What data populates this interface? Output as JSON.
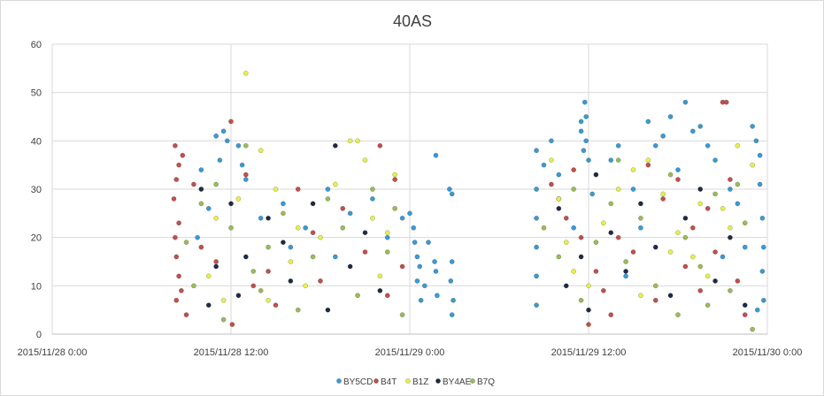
{
  "chart_data": {
    "type": "scatter",
    "title": "40AS",
    "xlabel": "",
    "ylabel": "",
    "x_ticks": [
      "2015/11/28 0:00",
      "2015/11/28 12:00",
      "2015/11/29 0:00",
      "2015/11/29 12:00",
      "2015/11/30 0:00"
    ],
    "xlim": [
      "2015/11/28 0:00",
      "2015/11/30 0:00"
    ],
    "ylim": [
      0,
      60
    ],
    "y_ticks": [
      0,
      10,
      20,
      30,
      40,
      50,
      60
    ],
    "grid": true,
    "legend_position": "bottom",
    "series": [
      {
        "name": "BY5CD",
        "color": "#3a9ad3",
        "points": [
          [
            "2015/11/28 11:00",
            41
          ],
          [
            "2015/11/28 11:30",
            42
          ],
          [
            "2015/11/28 11:45",
            40
          ],
          [
            "2015/11/28 12:30",
            39
          ],
          [
            "2015/11/28 10:00",
            34
          ],
          [
            "2015/11/28 11:15",
            36
          ],
          [
            "2015/11/28 12:45",
            35
          ],
          [
            "2015/11/28 13:00",
            32
          ],
          [
            "2015/11/28 10:30",
            26
          ],
          [
            "2015/11/28 9:45",
            20
          ],
          [
            "2015/11/28 14:00",
            24
          ],
          [
            "2015/11/28 15:30",
            27
          ],
          [
            "2015/11/28 17:00",
            22
          ],
          [
            "2015/11/28 18:30",
            30
          ],
          [
            "2015/11/28 20:00",
            25
          ],
          [
            "2015/11/28 21:30",
            28
          ],
          [
            "2015/11/28 22:30",
            20
          ],
          [
            "2015/11/28 23:30",
            24
          ],
          [
            "2015/11/28 16:00",
            18
          ],
          [
            "2015/11/28 19:00",
            16
          ],
          [
            "2015/11/29 0:00",
            25
          ],
          [
            "2015/11/29 0:15",
            22
          ],
          [
            "2015/11/29 0:20",
            19
          ],
          [
            "2015/11/29 0:30",
            16
          ],
          [
            "2015/11/29 0:40",
            14
          ],
          [
            "2015/11/29 0:30",
            11
          ],
          [
            "2015/11/29 1:00",
            10
          ],
          [
            "2015/11/29 0:45",
            7
          ],
          [
            "2015/11/29 1:15",
            19
          ],
          [
            "2015/11/29 1:45",
            37
          ],
          [
            "2015/11/29 1:40",
            15
          ],
          [
            "2015/11/29 1:45",
            13
          ],
          [
            "2015/11/29 1:50",
            8
          ],
          [
            "2015/11/29 2:40",
            30
          ],
          [
            "2015/11/29 2:50",
            29
          ],
          [
            "2015/11/29 2:50",
            15
          ],
          [
            "2015/11/29 2:45",
            11
          ],
          [
            "2015/11/29 2:55",
            7
          ],
          [
            "2015/11/29 2:50",
            4
          ],
          [
            "2015/11/29 8:30",
            38
          ],
          [
            "2015/11/29 8:30",
            30
          ],
          [
            "2015/11/29 8:30",
            24
          ],
          [
            "2015/11/29 8:30",
            18
          ],
          [
            "2015/11/29 8:30",
            12
          ],
          [
            "2015/11/29 8:30",
            6
          ],
          [
            "2015/11/29 9:00",
            35
          ],
          [
            "2015/11/29 9:30",
            40
          ],
          [
            "2015/11/29 10:00",
            33
          ],
          [
            "2015/11/29 11:00",
            22
          ],
          [
            "2015/11/29 11:30",
            44
          ],
          [
            "2015/11/29 11:30",
            42
          ],
          [
            "2015/11/29 11:45",
            48
          ],
          [
            "2015/11/29 11:50",
            45
          ],
          [
            "2015/11/29 11:50",
            40
          ],
          [
            "2015/11/29 11:40",
            38
          ],
          [
            "2015/11/29 12:00",
            36
          ],
          [
            "2015/11/29 12:15",
            29
          ],
          [
            "2015/11/29 13:30",
            36
          ],
          [
            "2015/11/29 14:00",
            39
          ],
          [
            "2015/11/29 15:00",
            30
          ],
          [
            "2015/11/29 16:00",
            44
          ],
          [
            "2015/11/29 16:30",
            39
          ],
          [
            "2015/11/29 17:00",
            41
          ],
          [
            "2015/11/29 17:30",
            45
          ],
          [
            "2015/11/29 18:00",
            34
          ],
          [
            "2015/11/29 18:30",
            48
          ],
          [
            "2015/11/29 19:00",
            42
          ],
          [
            "2015/11/29 19:30",
            43
          ],
          [
            "2015/11/29 20:00",
            39
          ],
          [
            "2015/11/29 20:30",
            36
          ],
          [
            "2015/11/29 21:30",
            30
          ],
          [
            "2015/11/29 22:00",
            27
          ],
          [
            "2015/11/29 22:30",
            18
          ],
          [
            "2015/11/29 23:00",
            43
          ],
          [
            "2015/11/29 23:15",
            40
          ],
          [
            "2015/11/29 23:30",
            37
          ],
          [
            "2015/11/29 23:30",
            31
          ],
          [
            "2015/11/29 23:40",
            24
          ],
          [
            "2015/11/29 23:45",
            18
          ],
          [
            "2015/11/29 23:40",
            13
          ],
          [
            "2015/11/29 23:45",
            7
          ],
          [
            "2015/11/29 23:20",
            5
          ],
          [
            "2015/11/29 21:00",
            16
          ],
          [
            "2015/11/29 15:30",
            22
          ],
          [
            "2015/11/29 14:30",
            12
          ]
        ]
      },
      {
        "name": "B4T",
        "color": "#c0504d",
        "points": [
          [
            "2015/11/28 8:15",
            39
          ],
          [
            "2015/11/28 8:45",
            37
          ],
          [
            "2015/11/28 8:30",
            35
          ],
          [
            "2015/11/28 8:20",
            32
          ],
          [
            "2015/11/28 8:10",
            28
          ],
          [
            "2015/11/28 8:30",
            23
          ],
          [
            "2015/11/28 8:15",
            20
          ],
          [
            "2015/11/28 8:20",
            16
          ],
          [
            "2015/11/28 8:30",
            12
          ],
          [
            "2015/11/28 8:40",
            9
          ],
          [
            "2015/11/28 8:20",
            7
          ],
          [
            "2015/11/28 9:00",
            4
          ],
          [
            "2015/11/28 9:30",
            31
          ],
          [
            "2015/11/28 10:00",
            18
          ],
          [
            "2015/11/28 12:00",
            44
          ],
          [
            "2015/11/28 12:05",
            2
          ],
          [
            "2015/11/28 13:00",
            33
          ],
          [
            "2015/11/28 14:30",
            13
          ],
          [
            "2015/11/28 16:30",
            30
          ],
          [
            "2015/11/28 18:00",
            11
          ],
          [
            "2015/11/28 19:30",
            26
          ],
          [
            "2015/11/28 21:00",
            17
          ],
          [
            "2015/11/28 22:00",
            39
          ],
          [
            "2015/11/28 23:00",
            32
          ],
          [
            "2015/11/28 22:30",
            8
          ],
          [
            "2015/11/28 23:30",
            14
          ],
          [
            "2015/11/28 17:30",
            21
          ],
          [
            "2015/11/28 15:00",
            6
          ],
          [
            "2015/11/28 11:00",
            15
          ],
          [
            "2015/11/28 13:30",
            10
          ],
          [
            "2015/11/29 9:30",
            31
          ],
          [
            "2015/11/29 10:00",
            28
          ],
          [
            "2015/11/29 10:30",
            24
          ],
          [
            "2015/11/29 11:00",
            34
          ],
          [
            "2015/11/29 11:30",
            20
          ],
          [
            "2015/11/29 12:00",
            2
          ],
          [
            "2015/11/29 12:30",
            13
          ],
          [
            "2015/11/29 13:00",
            9
          ],
          [
            "2015/11/29 14:00",
            20
          ],
          [
            "2015/11/29 15:00",
            17
          ],
          [
            "2015/11/29 16:00",
            35
          ],
          [
            "2015/11/29 17:00",
            28
          ],
          [
            "2015/11/29 18:00",
            32
          ],
          [
            "2015/11/29 19:00",
            22
          ],
          [
            "2015/11/29 20:00",
            26
          ],
          [
            "2015/11/29 21:00",
            48
          ],
          [
            "2015/11/29 21:15",
            48
          ],
          [
            "2015/11/29 21:30",
            32
          ],
          [
            "2015/11/29 22:00",
            11
          ],
          [
            "2015/11/29 22:30",
            4
          ],
          [
            "2015/11/29 13:30",
            4
          ],
          [
            "2015/11/29 16:30",
            7
          ],
          [
            "2015/11/29 18:30",
            14
          ],
          [
            "2015/11/29 20:30",
            17
          ],
          [
            "2015/11/29 19:30",
            9
          ]
        ]
      },
      {
        "name": "B1Z",
        "color": "#e6f04a",
        "points": [
          [
            "2015/11/28 13:00",
            54
          ],
          [
            "2015/11/28 12:30",
            28
          ],
          [
            "2015/11/28 14:00",
            38
          ],
          [
            "2015/11/28 15:00",
            30
          ],
          [
            "2015/11/28 16:00",
            15
          ],
          [
            "2015/11/28 17:00",
            10
          ],
          [
            "2015/11/28 18:00",
            20
          ],
          [
            "2015/11/28 19:00",
            31
          ],
          [
            "2015/11/28 20:00",
            40
          ],
          [
            "2015/11/28 20:30",
            40
          ],
          [
            "2015/11/28 21:00",
            36
          ],
          [
            "2015/11/28 21:30",
            24
          ],
          [
            "2015/11/28 22:00",
            12
          ],
          [
            "2015/11/28 22:30",
            21
          ],
          [
            "2015/11/28 23:00",
            33
          ],
          [
            "2015/11/28 10:30",
            12
          ],
          [
            "2015/11/28 11:30",
            7
          ],
          [
            "2015/11/28 11:00",
            24
          ],
          [
            "2015/11/28 14:30",
            7
          ],
          [
            "2015/11/28 16:30",
            22
          ],
          [
            "2015/11/29 9:30",
            36
          ],
          [
            "2015/11/29 10:00",
            28
          ],
          [
            "2015/11/29 10:30",
            19
          ],
          [
            "2015/11/29 11:00",
            13
          ],
          [
            "2015/11/29 12:00",
            10
          ],
          [
            "2015/11/29 13:00",
            23
          ],
          [
            "2015/11/29 14:00",
            30
          ],
          [
            "2015/11/29 15:00",
            34
          ],
          [
            "2015/11/29 16:00",
            36
          ],
          [
            "2015/11/29 17:00",
            29
          ],
          [
            "2015/11/29 18:00",
            21
          ],
          [
            "2015/11/29 19:00",
            16
          ],
          [
            "2015/11/29 20:00",
            12
          ],
          [
            "2015/11/29 21:00",
            26
          ],
          [
            "2015/11/29 22:00",
            39
          ],
          [
            "2015/11/29 23:00",
            35
          ],
          [
            "2015/11/29 15:30",
            8
          ],
          [
            "2015/11/29 17:30",
            17
          ],
          [
            "2015/11/29 19:30",
            27
          ],
          [
            "2015/11/29 21:30",
            22
          ]
        ]
      },
      {
        "name": "BY4AE",
        "color": "#1f2a44",
        "points": [
          [
            "2015/11/28 10:00",
            30
          ],
          [
            "2015/11/28 10:30",
            6
          ],
          [
            "2015/11/28 11:00",
            14
          ],
          [
            "2015/11/28 12:00",
            27
          ],
          [
            "2015/11/28 13:00",
            16
          ],
          [
            "2015/11/28 14:30",
            24
          ],
          [
            "2015/11/28 16:00",
            11
          ],
          [
            "2015/11/28 17:30",
            27
          ],
          [
            "2015/11/28 19:00",
            39
          ],
          [
            "2015/11/28 20:00",
            14
          ],
          [
            "2015/11/28 21:00",
            21
          ],
          [
            "2015/11/28 22:00",
            9
          ],
          [
            "2015/11/28 18:30",
            5
          ],
          [
            "2015/11/28 15:30",
            19
          ],
          [
            "2015/11/28 12:30",
            8
          ],
          [
            "2015/11/29 10:00",
            26
          ],
          [
            "2015/11/29 10:30",
            10
          ],
          [
            "2015/11/29 11:30",
            16
          ],
          [
            "2015/11/29 12:00",
            5
          ],
          [
            "2015/11/29 12:30",
            33
          ],
          [
            "2015/11/29 13:30",
            21
          ],
          [
            "2015/11/29 14:30",
            13
          ],
          [
            "2015/11/29 15:30",
            27
          ],
          [
            "2015/11/29 16:30",
            18
          ],
          [
            "2015/11/29 17:30",
            8
          ],
          [
            "2015/11/29 18:30",
            24
          ],
          [
            "2015/11/29 19:30",
            30
          ],
          [
            "2015/11/29 20:30",
            11
          ],
          [
            "2015/11/29 21:30",
            20
          ],
          [
            "2015/11/29 22:30",
            6
          ]
        ]
      },
      {
        "name": "B7Q",
        "color": "#9bbb59",
        "points": [
          [
            "2015/11/28 9:00",
            19
          ],
          [
            "2015/11/28 9:30",
            10
          ],
          [
            "2015/11/28 10:00",
            27
          ],
          [
            "2015/11/28 11:00",
            31
          ],
          [
            "2015/11/28 12:00",
            22
          ],
          [
            "2015/11/28 13:00",
            39
          ],
          [
            "2015/11/28 13:30",
            13
          ],
          [
            "2015/11/28 14:30",
            18
          ],
          [
            "2015/11/28 15:30",
            25
          ],
          [
            "2015/11/28 16:30",
            5
          ],
          [
            "2015/11/28 17:30",
            16
          ],
          [
            "2015/11/28 18:30",
            28
          ],
          [
            "2015/11/28 19:30",
            22
          ],
          [
            "2015/11/28 20:30",
            8
          ],
          [
            "2015/11/28 21:30",
            30
          ],
          [
            "2015/11/28 22:30",
            17
          ],
          [
            "2015/11/28 23:30",
            4
          ],
          [
            "2015/11/28 23:00",
            26
          ],
          [
            "2015/11/28 11:30",
            3
          ],
          [
            "2015/11/28 14:00",
            9
          ],
          [
            "2015/11/29 9:00",
            22
          ],
          [
            "2015/11/29 10:00",
            16
          ],
          [
            "2015/11/29 11:00",
            30
          ],
          [
            "2015/11/29 11:30",
            7
          ],
          [
            "2015/11/29 12:30",
            19
          ],
          [
            "2015/11/29 13:30",
            27
          ],
          [
            "2015/11/29 14:30",
            15
          ],
          [
            "2015/11/29 15:30",
            24
          ],
          [
            "2015/11/29 16:30",
            10
          ],
          [
            "2015/11/29 17:30",
            33
          ],
          [
            "2015/11/29 18:30",
            20
          ],
          [
            "2015/11/29 19:30",
            14
          ],
          [
            "2015/11/29 20:30",
            29
          ],
          [
            "2015/11/29 21:30",
            9
          ],
          [
            "2015/11/29 22:30",
            23
          ],
          [
            "2015/11/29 23:00",
            1
          ],
          [
            "2015/11/29 18:00",
            4
          ],
          [
            "2015/11/29 22:00",
            31
          ],
          [
            "2015/11/29 14:00",
            36
          ],
          [
            "2015/11/29 20:00",
            6
          ]
        ]
      }
    ]
  }
}
